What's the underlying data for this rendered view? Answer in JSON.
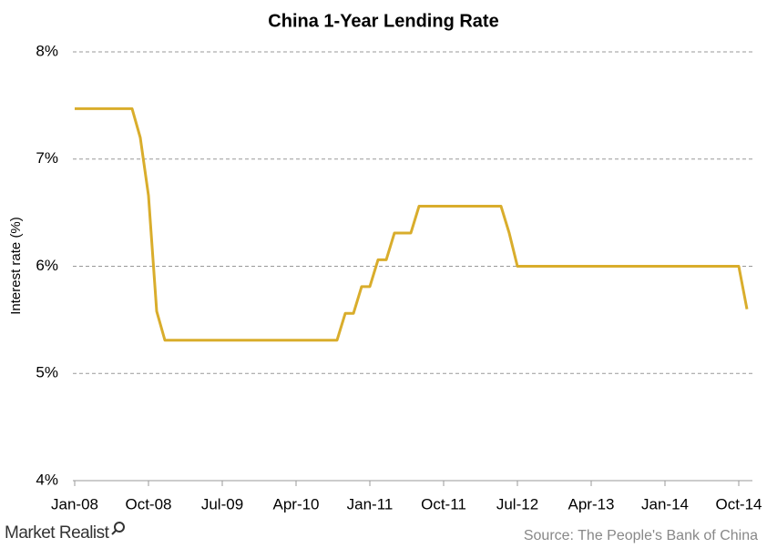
{
  "chart_data": {
    "type": "line",
    "title": "China 1-Year Lending Rate",
    "y_label": "Interest rate (%)",
    "categories": [
      "Jan-08",
      null,
      null,
      null,
      null,
      null,
      null,
      null,
      null,
      "Oct-08",
      null,
      null,
      null,
      null,
      null,
      null,
      null,
      null,
      "Jul-09",
      null,
      null,
      null,
      null,
      null,
      null,
      null,
      null,
      "Apr-10",
      null,
      null,
      null,
      null,
      null,
      null,
      null,
      null,
      "Jan-11",
      null,
      null,
      null,
      null,
      null,
      null,
      null,
      null,
      "Oct-11",
      null,
      null,
      null,
      null,
      null,
      null,
      null,
      null,
      "Jul-12",
      null,
      null,
      null,
      null,
      null,
      null,
      null,
      null,
      "Apr-13",
      null,
      null,
      null,
      null,
      null,
      null,
      null,
      null,
      "Jan-14",
      null,
      null,
      null,
      null,
      null,
      null,
      null,
      null,
      "Oct-14",
      null
    ],
    "values": [
      7.47,
      7.47,
      7.47,
      7.47,
      7.47,
      7.47,
      7.47,
      7.47,
      7.2,
      6.66,
      5.58,
      5.31,
      5.31,
      5.31,
      5.31,
      5.31,
      5.31,
      5.31,
      5.31,
      5.31,
      5.31,
      5.31,
      5.31,
      5.31,
      5.31,
      5.31,
      5.31,
      5.31,
      5.31,
      5.31,
      5.31,
      5.31,
      5.31,
      5.56,
      5.56,
      5.81,
      5.81,
      6.06,
      6.06,
      6.31,
      6.31,
      6.31,
      6.56,
      6.56,
      6.56,
      6.56,
      6.56,
      6.56,
      6.56,
      6.56,
      6.56,
      6.56,
      6.56,
      6.31,
      6.0,
      6.0,
      6.0,
      6.0,
      6.0,
      6.0,
      6.0,
      6.0,
      6.0,
      6.0,
      6.0,
      6.0,
      6.0,
      6.0,
      6.0,
      6.0,
      6.0,
      6.0,
      6.0,
      6.0,
      6.0,
      6.0,
      6.0,
      6.0,
      6.0,
      6.0,
      6.0,
      6.0,
      5.6
    ],
    "color": "#d9ad2c",
    "ylim": [
      4,
      8
    ],
    "yticks": [
      {
        "value": 4,
        "label": "4%"
      },
      {
        "value": 5,
        "label": "5%"
      },
      {
        "value": 6,
        "label": "6%"
      },
      {
        "value": 7,
        "label": "7%"
      },
      {
        "value": 8,
        "label": "8%"
      }
    ],
    "grid": true,
    "source": "Source: The People's Bank of China",
    "brand": "Market Realist"
  }
}
